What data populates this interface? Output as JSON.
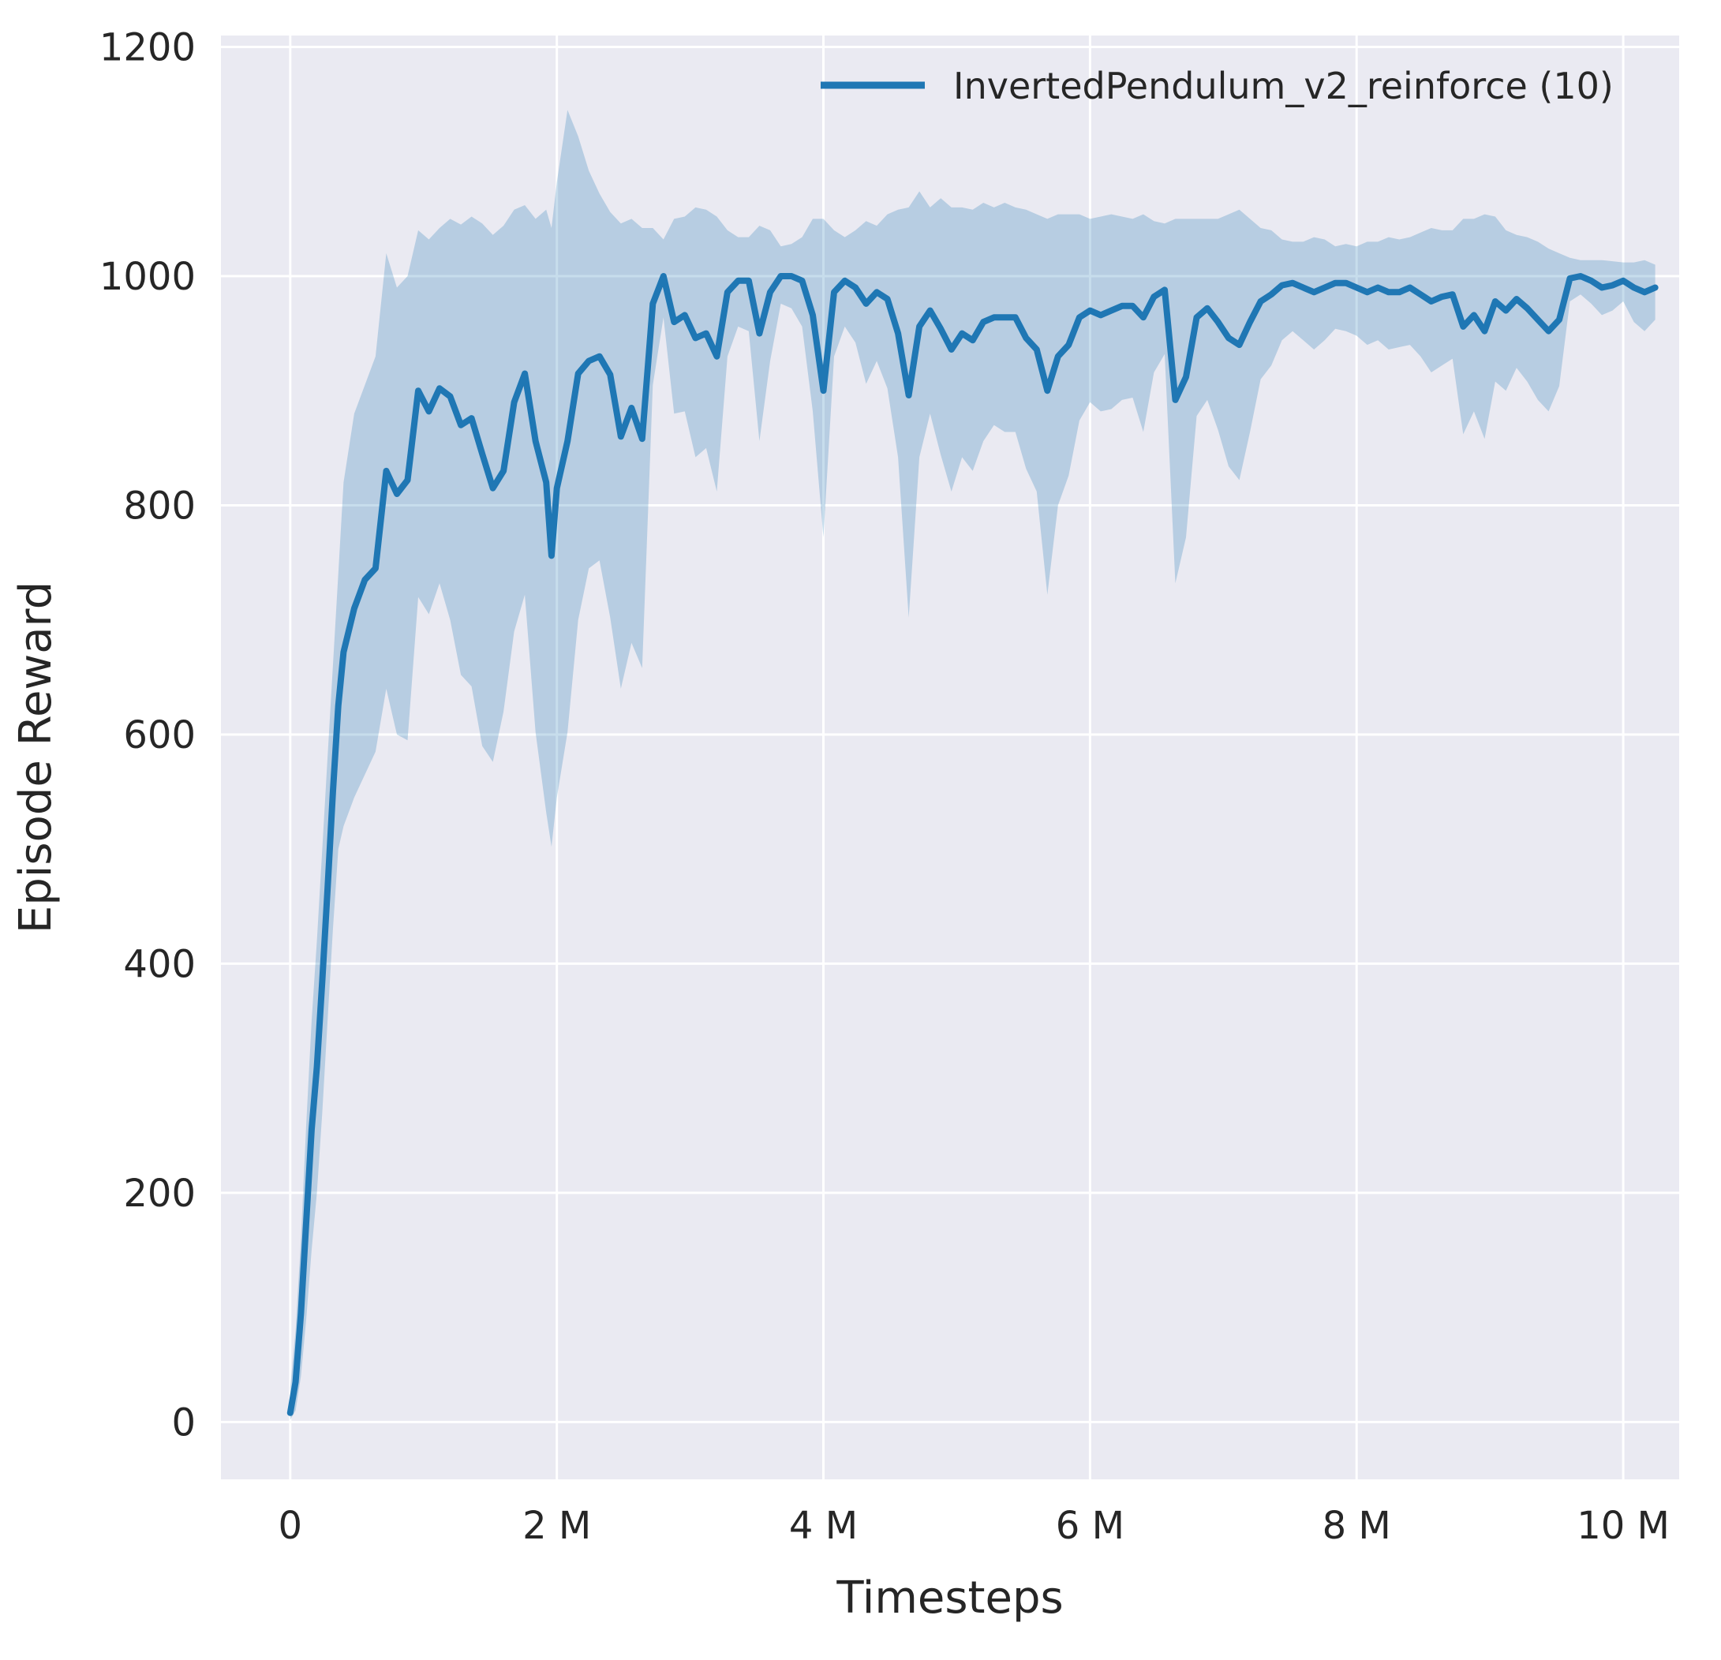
{
  "figure": {
    "background": "#ffffff"
  },
  "chart_data": {
    "type": "line",
    "title": "",
    "xlabel": "Timesteps",
    "ylabel": "Episode Reward",
    "x_unit": "millions_of_timesteps",
    "xlim": [
      -0.52,
      10.42
    ],
    "ylim": [
      -50,
      1210
    ],
    "xticks": [
      0,
      2,
      4,
      6,
      8,
      10
    ],
    "xticklabels": [
      "0",
      "2 M",
      "4 M",
      "6 M",
      "8 M",
      "10 M"
    ],
    "yticks": [
      0,
      200,
      400,
      600,
      800,
      1000,
      1200
    ],
    "yticklabels": [
      "0",
      "200",
      "400",
      "600",
      "800",
      "1000",
      "1200"
    ],
    "grid": true,
    "legend_position": "upper right",
    "style": {
      "axes_background": "#eaeaf2",
      "grid_color": "#ffffff",
      "line_color": "#1f77b4",
      "band_color": "#1f77b4",
      "band_opacity": 0.25,
      "text_color": "#262626"
    },
    "series": [
      {
        "name": "InvertedPendulum_v2_reinforce (10)",
        "x": [
          0,
          0.04,
          0.08,
          0.12,
          0.16,
          0.2,
          0.24,
          0.28,
          0.32,
          0.36,
          0.4,
          0.48,
          0.56,
          0.64,
          0.72,
          0.8,
          0.88,
          0.96,
          1.04,
          1.12,
          1.2,
          1.28,
          1.36,
          1.44,
          1.52,
          1.6,
          1.68,
          1.76,
          1.84,
          1.92,
          1.96,
          2.0,
          2.08,
          2.16,
          2.24,
          2.32,
          2.4,
          2.48,
          2.56,
          2.64,
          2.72,
          2.8,
          2.88,
          2.96,
          3.04,
          3.12,
          3.2,
          3.28,
          3.36,
          3.44,
          3.52,
          3.6,
          3.68,
          3.76,
          3.84,
          3.92,
          4.0,
          4.08,
          4.16,
          4.24,
          4.32,
          4.4,
          4.48,
          4.56,
          4.64,
          4.72,
          4.8,
          4.88,
          4.96,
          5.04,
          5.12,
          5.2,
          5.28,
          5.36,
          5.44,
          5.52,
          5.6,
          5.68,
          5.76,
          5.84,
          5.92,
          6.0,
          6.08,
          6.16,
          6.24,
          6.32,
          6.4,
          6.48,
          6.56,
          6.64,
          6.72,
          6.8,
          6.88,
          6.96,
          7.04,
          7.12,
          7.2,
          7.28,
          7.36,
          7.44,
          7.52,
          7.6,
          7.68,
          7.76,
          7.84,
          7.92,
          8.0,
          8.08,
          8.16,
          8.24,
          8.32,
          8.4,
          8.48,
          8.56,
          8.64,
          8.72,
          8.8,
          8.88,
          8.96,
          9.04,
          9.12,
          9.2,
          9.28,
          9.36,
          9.44,
          9.52,
          9.6,
          9.68,
          9.76,
          9.84,
          9.92,
          10.0,
          10.08,
          10.16,
          10.24
        ],
        "mean": [
          8,
          35,
          95,
          175,
          255,
          310,
          385,
          465,
          550,
          625,
          672,
          710,
          735,
          745,
          830,
          810,
          822,
          900,
          882,
          902,
          895,
          870,
          876,
          845,
          815,
          830,
          890,
          915,
          856,
          820,
          756,
          815,
          856,
          915,
          926,
          930,
          914,
          860,
          885,
          858,
          976,
          1000,
          960,
          966,
          946,
          950,
          930,
          986,
          996,
          996,
          950,
          986,
          1000,
          1000,
          996,
          966,
          900,
          986,
          996,
          990,
          976,
          986,
          980,
          950,
          896,
          956,
          970,
          954,
          936,
          950,
          944,
          960,
          964,
          964,
          964,
          946,
          936,
          900,
          930,
          940,
          964,
          970,
          966,
          970,
          974,
          974,
          964,
          982,
          988,
          892,
          912,
          964,
          972,
          960,
          946,
          940,
          960,
          978,
          984,
          992,
          994,
          990,
          986,
          990,
          994,
          994,
          990,
          986,
          990,
          986,
          986,
          990,
          984,
          978,
          982,
          984,
          956,
          966,
          952,
          978,
          970,
          980,
          972,
          962,
          952,
          962,
          998,
          1000,
          996,
          990,
          992,
          996,
          990,
          986,
          990
        ],
        "lower": [
          2,
          10,
          40,
          90,
          150,
          200,
          270,
          350,
          430,
          500,
          520,
          545,
          565,
          585,
          640,
          600,
          595,
          720,
          705,
          732,
          700,
          652,
          642,
          590,
          576,
          620,
          690,
          722,
          602,
          532,
          502,
          545,
          602,
          700,
          745,
          752,
          702,
          640,
          680,
          658,
          905,
          964,
          880,
          882,
          842,
          850,
          812,
          930,
          956,
          952,
          856,
          926,
          976,
          972,
          956,
          882,
          772,
          930,
          956,
          942,
          906,
          926,
          902,
          842,
          702,
          842,
          880,
          844,
          812,
          842,
          830,
          856,
          870,
          864,
          864,
          832,
          812,
          722,
          800,
          826,
          874,
          890,
          882,
          884,
          892,
          894,
          864,
          916,
          932,
          732,
          772,
          878,
          892,
          866,
          834,
          822,
          864,
          910,
          922,
          944,
          952,
          944,
          936,
          944,
          954,
          952,
          948,
          940,
          944,
          936,
          938,
          940,
          930,
          916,
          922,
          928,
          862,
          882,
          858,
          908,
          900,
          920,
          908,
          892,
          882,
          904,
          978,
          984,
          976,
          966,
          970,
          978,
          960,
          952,
          962
        ],
        "upper": [
          30,
          80,
          160,
          260,
          350,
          420,
          500,
          580,
          660,
          740,
          820,
          880,
          905,
          930,
          1020,
          990,
          1000,
          1040,
          1032,
          1042,
          1050,
          1045,
          1052,
          1046,
          1036,
          1044,
          1058,
          1062,
          1050,
          1058,
          1042,
          1082,
          1145,
          1122,
          1092,
          1072,
          1056,
          1046,
          1050,
          1042,
          1042,
          1032,
          1050,
          1052,
          1060,
          1058,
          1052,
          1040,
          1034,
          1034,
          1044,
          1040,
          1026,
          1028,
          1034,
          1050,
          1050,
          1040,
          1034,
          1040,
          1048,
          1044,
          1054,
          1058,
          1060,
          1074,
          1060,
          1068,
          1060,
          1060,
          1058,
          1064,
          1060,
          1064,
          1060,
          1058,
          1054,
          1050,
          1054,
          1054,
          1054,
          1050,
          1052,
          1054,
          1052,
          1050,
          1054,
          1048,
          1046,
          1050,
          1050,
          1050,
          1050,
          1050,
          1054,
          1058,
          1050,
          1042,
          1040,
          1032,
          1030,
          1030,
          1034,
          1032,
          1026,
          1028,
          1026,
          1030,
          1030,
          1034,
          1032,
          1034,
          1038,
          1042,
          1040,
          1040,
          1050,
          1050,
          1054,
          1052,
          1040,
          1036,
          1034,
          1030,
          1024,
          1020,
          1016,
          1014,
          1014,
          1014,
          1013,
          1012,
          1012,
          1014,
          1010
        ]
      }
    ]
  }
}
